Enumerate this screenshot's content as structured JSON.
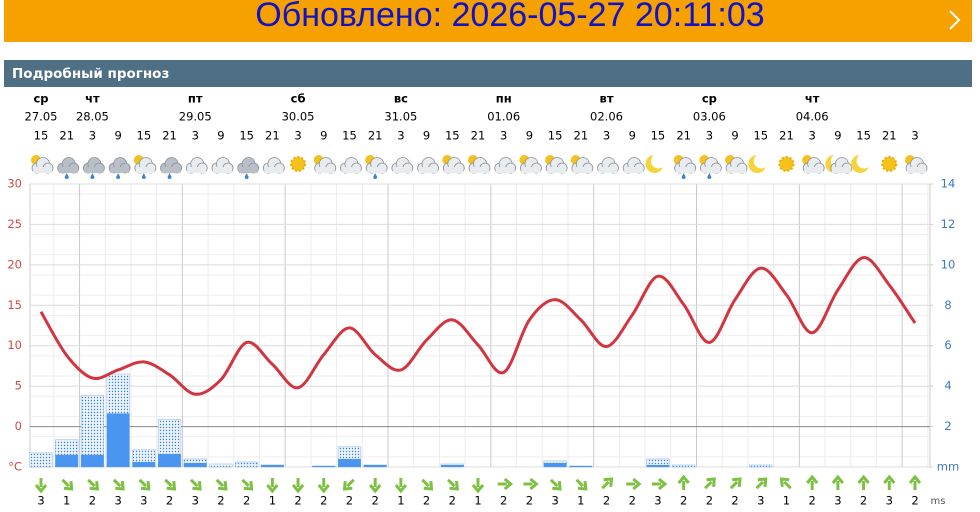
{
  "banner": {
    "text": "Обновлено: 2026-05-27 20:11:03"
  },
  "section_title": "Подробный прогноз",
  "chart_data": {
    "type": "line",
    "days": [
      {
        "weekday": "ср",
        "date": "27.05"
      },
      {
        "weekday": "чт",
        "date": "28.05"
      },
      {
        "weekday": "пт",
        "date": "29.05"
      },
      {
        "weekday": "сб",
        "date": "30.05"
      },
      {
        "weekday": "вс",
        "date": "31.05"
      },
      {
        "weekday": "пн",
        "date": "01.06"
      },
      {
        "weekday": "вт",
        "date": "02.06"
      },
      {
        "weekday": "ср",
        "date": "03.06"
      },
      {
        "weekday": "чт",
        "date": "04.06"
      }
    ],
    "hours": [
      15,
      21,
      3,
      9,
      15,
      21,
      3,
      9,
      15,
      21,
      3,
      9,
      15,
      21,
      3,
      9,
      15,
      21,
      3,
      9,
      15,
      21,
      3,
      9,
      15,
      21,
      3,
      9,
      15,
      21,
      3,
      9,
      15,
      21,
      3
    ],
    "temperature": {
      "color": "#d3343f",
      "values": [
        14.2,
        8.8,
        6.0,
        7.0,
        8.0,
        6.4,
        4.0,
        5.8,
        10.4,
        7.7,
        4.8,
        8.9,
        12.2,
        8.9,
        7.0,
        10.7,
        13.2,
        10.1,
        6.7,
        13.2,
        15.7,
        13.2,
        9.9,
        13.8,
        18.6,
        15.1,
        10.4,
        15.7,
        19.6,
        16.3,
        11.6,
        16.9,
        20.9,
        17.5,
        12.8
      ]
    },
    "precipitation": [
      {
        "color": "#3b83d6",
        "values": [
          0.7,
          1.35,
          3.55,
          4.6,
          0.85,
          2.35,
          0.4,
          0.15,
          0.25,
          0.1,
          0,
          0.05,
          1.0,
          0.1,
          0,
          0,
          0.15,
          0,
          0,
          0,
          0.3,
          0.05,
          0,
          0,
          0.4,
          0.1,
          0,
          0,
          0.1,
          0,
          0,
          0,
          0,
          0,
          0
        ]
      },
      {
        "color": "#4a95ef",
        "values": [
          0,
          0.6,
          0.6,
          2.65,
          0.25,
          0.65,
          0.2,
          0,
          0,
          0.1,
          0,
          0.05,
          0.4,
          0.1,
          0,
          0,
          0.1,
          0,
          0,
          0,
          0.2,
          0.05,
          0,
          0,
          0.1,
          0,
          0,
          0,
          0,
          0,
          0,
          0,
          0,
          0,
          0
        ]
      }
    ],
    "ylim": [
      -5,
      30
    ],
    "yticks": [
      {
        "value": -5,
        "label": "°C"
      },
      0,
      5,
      10,
      15,
      20,
      25,
      30
    ],
    "y2lim": [
      0,
      14
    ],
    "y2ticks": [
      {
        "value": 0,
        "label": "mm"
      },
      2,
      4,
      6,
      8,
      10,
      12,
      14
    ],
    "wind": {
      "unit": "ms",
      "color": "#7cc142",
      "speed": [
        3,
        1,
        2,
        3,
        3,
        2,
        3,
        2,
        2,
        1,
        2,
        2,
        2,
        2,
        1,
        2,
        2,
        1,
        2,
        2,
        3,
        1,
        2,
        2,
        3,
        2,
        2,
        2,
        3,
        1,
        2,
        3,
        2,
        3,
        2
      ],
      "direction": [
        180,
        135,
        135,
        135,
        135,
        135,
        135,
        135,
        135,
        180,
        180,
        180,
        225,
        180,
        180,
        135,
        135,
        180,
        90,
        90,
        135,
        135,
        45,
        90,
        90,
        0,
        45,
        45,
        45,
        315,
        0,
        0,
        0,
        0,
        0
      ]
    }
  }
}
